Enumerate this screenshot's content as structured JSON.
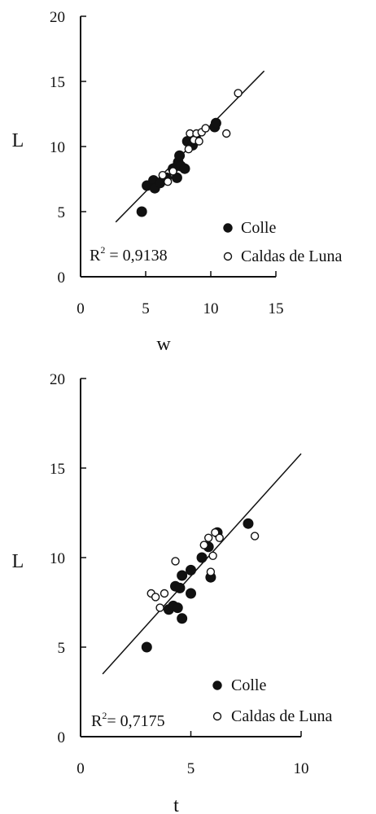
{
  "chart_data": [
    {
      "type": "scatter",
      "title": "",
      "xlabel": "w",
      "ylabel": "L",
      "xlim": [
        0,
        15
      ],
      "ylim": [
        0,
        20
      ],
      "xticks": [
        "0",
        "5",
        "10",
        "15"
      ],
      "yticks": [
        "0",
        "5",
        "10",
        "15",
        "20"
      ],
      "annotation": {
        "prefix": "R",
        "sup": "2",
        "text": " = 0,9138"
      },
      "fit_line": {
        "x1": 2.7,
        "y1": 4.2,
        "x2": 14.1,
        "y2": 15.8
      },
      "grid": false,
      "legend_position": "bottom-right",
      "series": [
        {
          "name": "Colle",
          "marker": "filled-circle",
          "points": [
            [
              4.7,
              5.0
            ],
            [
              5.1,
              7.0
            ],
            [
              5.6,
              7.4
            ],
            [
              5.7,
              6.8
            ],
            [
              6.1,
              7.2
            ],
            [
              6.6,
              7.6
            ],
            [
              7.1,
              8.3
            ],
            [
              7.4,
              7.6
            ],
            [
              7.5,
              8.8
            ],
            [
              7.6,
              9.3
            ],
            [
              7.7,
              8.5
            ],
            [
              8.0,
              8.3
            ],
            [
              8.2,
              10.4
            ],
            [
              8.6,
              10.1
            ],
            [
              8.9,
              10.5
            ],
            [
              10.3,
              11.5
            ],
            [
              10.4,
              11.8
            ]
          ]
        },
        {
          "name": "Caldas de Luna",
          "marker": "open-circle",
          "points": [
            [
              6.3,
              7.8
            ],
            [
              6.7,
              7.3
            ],
            [
              7.1,
              8.1
            ],
            [
              8.3,
              9.8
            ],
            [
              8.4,
              11.0
            ],
            [
              8.7,
              10.5
            ],
            [
              8.9,
              11.0
            ],
            [
              9.1,
              10.4
            ],
            [
              9.3,
              11.1
            ],
            [
              9.6,
              11.4
            ],
            [
              11.2,
              11.0
            ],
            [
              12.1,
              14.1
            ]
          ]
        }
      ]
    },
    {
      "type": "scatter",
      "title": "",
      "xlabel": "t",
      "ylabel": "L",
      "xlim": [
        0,
        10
      ],
      "ylim": [
        0,
        20
      ],
      "xticks": [
        "0",
        "5",
        "10"
      ],
      "yticks": [
        "0",
        "5",
        "10",
        "15",
        "20"
      ],
      "annotation": {
        "prefix": "R",
        "sup": "2",
        "text": "= 0,7175"
      },
      "fit_line": {
        "x1": 1.0,
        "y1": 3.5,
        "x2": 10.0,
        "y2": 15.8
      },
      "grid": false,
      "legend_position": "bottom-right",
      "series": [
        {
          "name": "Colle",
          "marker": "filled-circle",
          "points": [
            [
              3.0,
              5.0
            ],
            [
              4.0,
              7.1
            ],
            [
              4.2,
              7.3
            ],
            [
              4.3,
              8.4
            ],
            [
              4.4,
              7.2
            ],
            [
              4.5,
              8.3
            ],
            [
              4.6,
              6.6
            ],
            [
              4.6,
              9.0
            ],
            [
              5.0,
              8.0
            ],
            [
              5.0,
              9.3
            ],
            [
              5.5,
              10.0
            ],
            [
              5.8,
              10.6
            ],
            [
              5.9,
              8.9
            ],
            [
              6.2,
              11.4
            ],
            [
              7.6,
              11.9
            ]
          ]
        },
        {
          "name": "Caldas de Luna",
          "marker": "open-circle",
          "points": [
            [
              3.2,
              8.0
            ],
            [
              3.4,
              7.8
            ],
            [
              3.6,
              7.2
            ],
            [
              3.8,
              8.0
            ],
            [
              4.3,
              9.8
            ],
            [
              5.6,
              10.7
            ],
            [
              5.8,
              11.1
            ],
            [
              5.9,
              9.2
            ],
            [
              6.0,
              10.1
            ],
            [
              6.1,
              11.4
            ],
            [
              6.3,
              11.1
            ],
            [
              7.9,
              11.2
            ]
          ]
        }
      ]
    }
  ]
}
